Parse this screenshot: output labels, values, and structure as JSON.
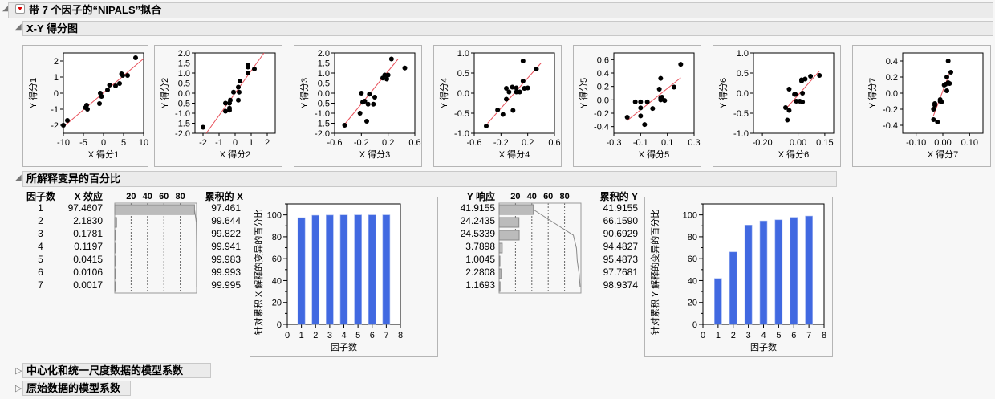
{
  "report": {
    "title": "带 7 个因子的“NIPALS”拟合"
  },
  "scores": {
    "title": "X-Y 得分图",
    "plots": [
      {
        "xlabel": "X 得分1",
        "ylabel": "Y 得分1",
        "xlim": [
          -10,
          10
        ],
        "ylim": [
          -2.5,
          2.5
        ],
        "xticks": [
          -10,
          -5,
          0,
          5,
          10
        ],
        "yticks": [
          -2,
          -1,
          0,
          1,
          2
        ],
        "xfmt": 0,
        "yfmt": 0,
        "points": [
          [
            -10,
            -2
          ],
          [
            -9,
            -1.7
          ],
          [
            -4.5,
            -0.9
          ],
          [
            -4.2,
            -0.75
          ],
          [
            -4,
            -1
          ],
          [
            -1,
            -0.65
          ],
          [
            -0.8,
            0
          ],
          [
            -0.5,
            -0.2
          ],
          [
            1,
            0.2
          ],
          [
            1.5,
            0.5
          ],
          [
            3,
            0.45
          ],
          [
            4,
            0.6
          ],
          [
            4.5,
            1.2
          ],
          [
            4.8,
            1.1
          ],
          [
            6,
            1.1
          ],
          [
            8,
            2.2
          ]
        ],
        "fit": [
          [
            -10,
            -2.1
          ],
          [
            10,
            2.15
          ]
        ]
      },
      {
        "xlabel": "X 得分2",
        "ylabel": "Y 得分2",
        "xlim": [
          -2.5,
          2.5
        ],
        "ylim": [
          -2,
          2
        ],
        "xticks": [
          -2,
          -1,
          0,
          1,
          2
        ],
        "yticks": [
          -2,
          -1.5,
          -1,
          -0.5,
          0,
          0.5,
          1,
          1.5,
          2
        ],
        "xfmt": 0,
        "yfmt": 1,
        "points": [
          [
            -2,
            -1.7
          ],
          [
            -0.6,
            -0.9
          ],
          [
            -0.6,
            -0.5
          ],
          [
            -0.35,
            -0.85
          ],
          [
            -0.35,
            -0.75
          ],
          [
            -0.35,
            -0.5
          ],
          [
            -0.3,
            -0.35
          ],
          [
            -0.1,
            0.05
          ],
          [
            0.2,
            0.3
          ],
          [
            0.25,
            0.05
          ],
          [
            0.2,
            -0.35
          ],
          [
            0.3,
            0.6
          ],
          [
            0.8,
            1.4
          ],
          [
            0.8,
            1.3
          ],
          [
            0.8,
            1.0
          ],
          [
            1.2,
            1.2
          ]
        ],
        "fit": [
          [
            -1.8,
            -2
          ],
          [
            1.8,
            2
          ]
        ]
      },
      {
        "xlabel": "X 得分3",
        "ylabel": "Y 得分3",
        "xlim": [
          -0.6,
          0.6
        ],
        "ylim": [
          -2,
          2
        ],
        "xticks": [
          -0.6,
          -0.2,
          0.2,
          0.6
        ],
        "yticks": [
          -2,
          -1.5,
          -1,
          -0.5,
          0,
          0.5,
          1,
          1.5,
          2
        ],
        "xfmt": 1,
        "yfmt": 1,
        "points": [
          [
            -0.45,
            -1.6
          ],
          [
            -0.22,
            -1.0
          ],
          [
            -0.2,
            0
          ],
          [
            -0.18,
            -0.45
          ],
          [
            -0.15,
            -0.4
          ],
          [
            -0.12,
            -1.4
          ],
          [
            -0.1,
            -0.55
          ],
          [
            -0.08,
            -0.05
          ],
          [
            -0.02,
            -0.55
          ],
          [
            0,
            -0.2
          ],
          [
            0.12,
            0.75
          ],
          [
            0.15,
            0.9
          ],
          [
            0.18,
            0.7
          ],
          [
            0.2,
            0.9
          ],
          [
            0.25,
            1.7
          ],
          [
            0.45,
            1.25
          ]
        ],
        "fit": [
          [
            -0.45,
            -1.55
          ],
          [
            0.35,
            1.7
          ]
        ]
      },
      {
        "xlabel": "X 得分4",
        "ylabel": "Y 得分4",
        "xlim": [
          -0.6,
          0.6
        ],
        "ylim": [
          -1,
          1
        ],
        "xticks": [
          -0.6,
          -0.2,
          0.2,
          0.6
        ],
        "yticks": [
          -1,
          -0.5,
          0,
          0.5,
          1
        ],
        "xfmt": 1,
        "yfmt": 1,
        "points": [
          [
            -0.42,
            -0.82
          ],
          [
            -0.25,
            -0.42
          ],
          [
            -0.17,
            -0.53
          ],
          [
            -0.12,
            0.12
          ],
          [
            -0.12,
            -0.15
          ],
          [
            -0.08,
            0.03
          ],
          [
            -0.03,
            0.15
          ],
          [
            -0.02,
            -0.43
          ],
          [
            0.03,
            0.13
          ],
          [
            0.03,
            0.03
          ],
          [
            0.08,
            0.03
          ],
          [
            0.13,
            0.8
          ],
          [
            0.13,
            0.3
          ],
          [
            0.15,
            0.12
          ],
          [
            0.2,
            0.13
          ],
          [
            0.33,
            0.6
          ]
        ],
        "fit": [
          [
            -0.4,
            -0.75
          ],
          [
            0.4,
            0.75
          ]
        ]
      },
      {
        "xlabel": "X 得分5",
        "ylabel": "Y 得分5",
        "xlim": [
          -0.3,
          0.3
        ],
        "ylim": [
          -0.5,
          0.7
        ],
        "xticks": [
          -0.3,
          -0.1,
          0.1,
          0.3
        ],
        "yticks": [
          -0.4,
          -0.2,
          0,
          0.2,
          0.4,
          0.6
        ],
        "xfmt": 1,
        "yfmt": 1,
        "points": [
          [
            -0.2,
            -0.26
          ],
          [
            -0.14,
            -0.03
          ],
          [
            -0.1,
            -0.03
          ],
          [
            -0.1,
            -0.12
          ],
          [
            -0.1,
            -0.24
          ],
          [
            -0.07,
            -0.37
          ],
          [
            -0.05,
            -0.03
          ],
          [
            -0.01,
            -0.13
          ],
          [
            0.04,
            0.16
          ],
          [
            0.05,
            0.32
          ],
          [
            0.05,
            0.03
          ],
          [
            0.06,
            0.04
          ],
          [
            0.05,
            0
          ],
          [
            0.08,
            -0.01
          ],
          [
            0.15,
            0.19
          ],
          [
            0.2,
            0.53
          ]
        ],
        "fit": [
          [
            -0.2,
            -0.31
          ],
          [
            0.2,
            0.33
          ]
        ]
      },
      {
        "xlabel": "X 得分6",
        "ylabel": "Y 得分6",
        "xlim": [
          -0.25,
          0.2
        ],
        "ylim": [
          -1,
          1
        ],
        "xticks": [
          -0.2,
          0,
          0.15
        ],
        "yticks": [
          -1,
          -0.5,
          0,
          0.5,
          1
        ],
        "xfmt": 2,
        "yfmt": 1,
        "points": [
          [
            -0.07,
            -0.36
          ],
          [
            -0.06,
            -0.67
          ],
          [
            -0.05,
            0.1
          ],
          [
            -0.05,
            -0.43
          ],
          [
            -0.02,
            -0.03
          ],
          [
            -0.015,
            -0.03
          ],
          [
            -0.01,
            -0.2
          ],
          [
            0.01,
            -0.2
          ],
          [
            0.02,
            0.3
          ],
          [
            0.02,
            0.33
          ],
          [
            0.025,
            0
          ],
          [
            0.025,
            -0.22
          ],
          [
            0.04,
            0.35
          ],
          [
            0.07,
            0.42
          ],
          [
            0.12,
            0.44
          ]
        ],
        "fit": [
          [
            -0.07,
            -0.4
          ],
          [
            0.12,
            0.55
          ]
        ]
      },
      {
        "xlabel": "X 得分7",
        "ylabel": "Y 得分7",
        "xlim": [
          -0.15,
          0.15
        ],
        "ylim": [
          -0.5,
          0.5
        ],
        "xticks": [
          -0.1,
          0,
          0.1
        ],
        "yticks": [
          -0.4,
          -0.2,
          0,
          0.2,
          0.4
        ],
        "xfmt": 2,
        "yfmt": 1,
        "points": [
          [
            -0.035,
            -0.33
          ],
          [
            -0.03,
            -0.15
          ],
          [
            -0.03,
            -0.13
          ],
          [
            -0.035,
            -0.2
          ],
          [
            -0.02,
            -0.36
          ],
          [
            -0.01,
            -0.1
          ],
          [
            -0.01,
            -0.08
          ],
          [
            -0.005,
            -0.11
          ],
          [
            0.005,
            0.1
          ],
          [
            0.01,
            0.11
          ],
          [
            0.015,
            0.03
          ],
          [
            0.015,
            0.2
          ],
          [
            0.02,
            0.4
          ],
          [
            0.02,
            0.13
          ],
          [
            0.025,
            0.12
          ],
          [
            0.03,
            0.26
          ]
        ],
        "fit": [
          [
            -0.035,
            -0.28
          ],
          [
            0.025,
            0.25
          ]
        ]
      }
    ]
  },
  "variance": {
    "title": "所解释变异的百分比",
    "headers": {
      "factors": "因子数",
      "x_effect": "X 效应",
      "cum_x": "累积的 X",
      "y_effect": "Y 响应",
      "cum_y": "累积的 Y",
      "scale": [
        "20",
        "40",
        "60",
        "80"
      ]
    },
    "rows": [
      {
        "n": "1",
        "x": "97.4607",
        "cx": "97.461",
        "y": "41.9155",
        "cy": "41.9155"
      },
      {
        "n": "2",
        "x": "2.1830",
        "cx": "99.644",
        "y": "24.2435",
        "cy": "66.1590"
      },
      {
        "n": "3",
        "x": "0.1781",
        "cx": "99.822",
        "y": "24.5339",
        "cy": "90.6929"
      },
      {
        "n": "4",
        "x": "0.1197",
        "cx": "99.941",
        "y": "3.7898",
        "cy": "94.4827"
      },
      {
        "n": "5",
        "x": "0.0415",
        "cx": "99.983",
        "y": "1.0045",
        "cy": "95.4873"
      },
      {
        "n": "6",
        "x": "0.0106",
        "cx": "99.993",
        "y": "2.2808",
        "cy": "97.7681"
      },
      {
        "n": "7",
        "x": "0.0017",
        "cx": "99.995",
        "y": "1.1693",
        "cy": "98.9374"
      }
    ],
    "bar_color": "#4169e1"
  },
  "chart_data": [
    {
      "type": "bar",
      "xlabel": "因子数",
      "ylabel": "针对累积 X 解释的变异的百分比",
      "categories": [
        1,
        2,
        3,
        4,
        5,
        6,
        7
      ],
      "values": [
        97.461,
        99.644,
        99.822,
        99.941,
        99.983,
        99.993,
        99.995
      ],
      "xlim": [
        0,
        8
      ],
      "ylim": [
        0,
        110
      ],
      "xticks": [
        0,
        1,
        2,
        3,
        4,
        5,
        6,
        7,
        8
      ],
      "yticks": [
        0,
        20,
        40,
        60,
        80,
        100
      ]
    },
    {
      "type": "bar",
      "xlabel": "因子数",
      "ylabel": "针对累积 Y 解释的变异的百分比",
      "categories": [
        1,
        2,
        3,
        4,
        5,
        6,
        7
      ],
      "values": [
        41.9155,
        66.159,
        90.6929,
        94.4827,
        95.4873,
        97.7681,
        98.9374
      ],
      "xlim": [
        0,
        8
      ],
      "ylim": [
        0,
        110
      ],
      "xticks": [
        0,
        1,
        2,
        3,
        4,
        5,
        6,
        7,
        8
      ],
      "yticks": [
        0,
        20,
        40,
        60,
        80,
        100
      ]
    }
  ],
  "collapsed": {
    "centered": "中心化和统一尺度数据的模型系数",
    "original": "原始数据的模型系数"
  }
}
